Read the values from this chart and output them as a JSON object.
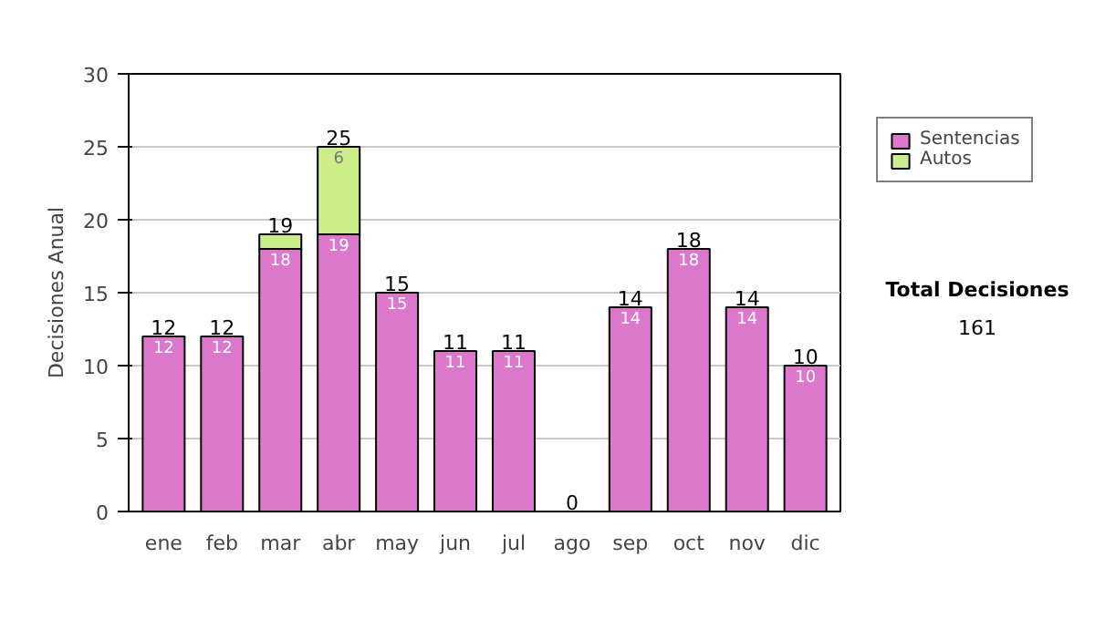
{
  "chart_data": {
    "type": "bar",
    "stacked": true,
    "ylabel": "Decisiones Anual",
    "categories": [
      "ene",
      "feb",
      "mar",
      "abr",
      "may",
      "jun",
      "jul",
      "ago",
      "sep",
      "oct",
      "nov",
      "dic"
    ],
    "series": [
      {
        "name": "Sentencias",
        "color": "#dd77cc",
        "values": [
          12,
          12,
          18,
          19,
          15,
          11,
          11,
          0,
          14,
          18,
          14,
          10
        ],
        "value_labels": [
          "12",
          "12",
          "18",
          "19",
          "15",
          "11",
          "11",
          null,
          "14",
          "18",
          "14",
          "10"
        ]
      },
      {
        "name": "Autos",
        "color": "#ccee88",
        "values": [
          0,
          0,
          1,
          6,
          0,
          0,
          0,
          0,
          0,
          0,
          0,
          0
        ],
        "value_labels": [
          null,
          null,
          null,
          "6",
          null,
          null,
          null,
          null,
          null,
          null,
          null,
          null
        ]
      }
    ],
    "totals": [
      "12",
      "12",
      "19",
      "25",
      "15",
      "11",
      "11",
      "0",
      "14",
      "18",
      "14",
      "10"
    ],
    "ylim": [
      0,
      30
    ],
    "yticks": [
      0,
      5,
      10,
      15,
      20,
      25,
      30
    ],
    "grid": "y",
    "legend": "right",
    "annotations": [
      "Total Decisiones",
      "161"
    ]
  }
}
